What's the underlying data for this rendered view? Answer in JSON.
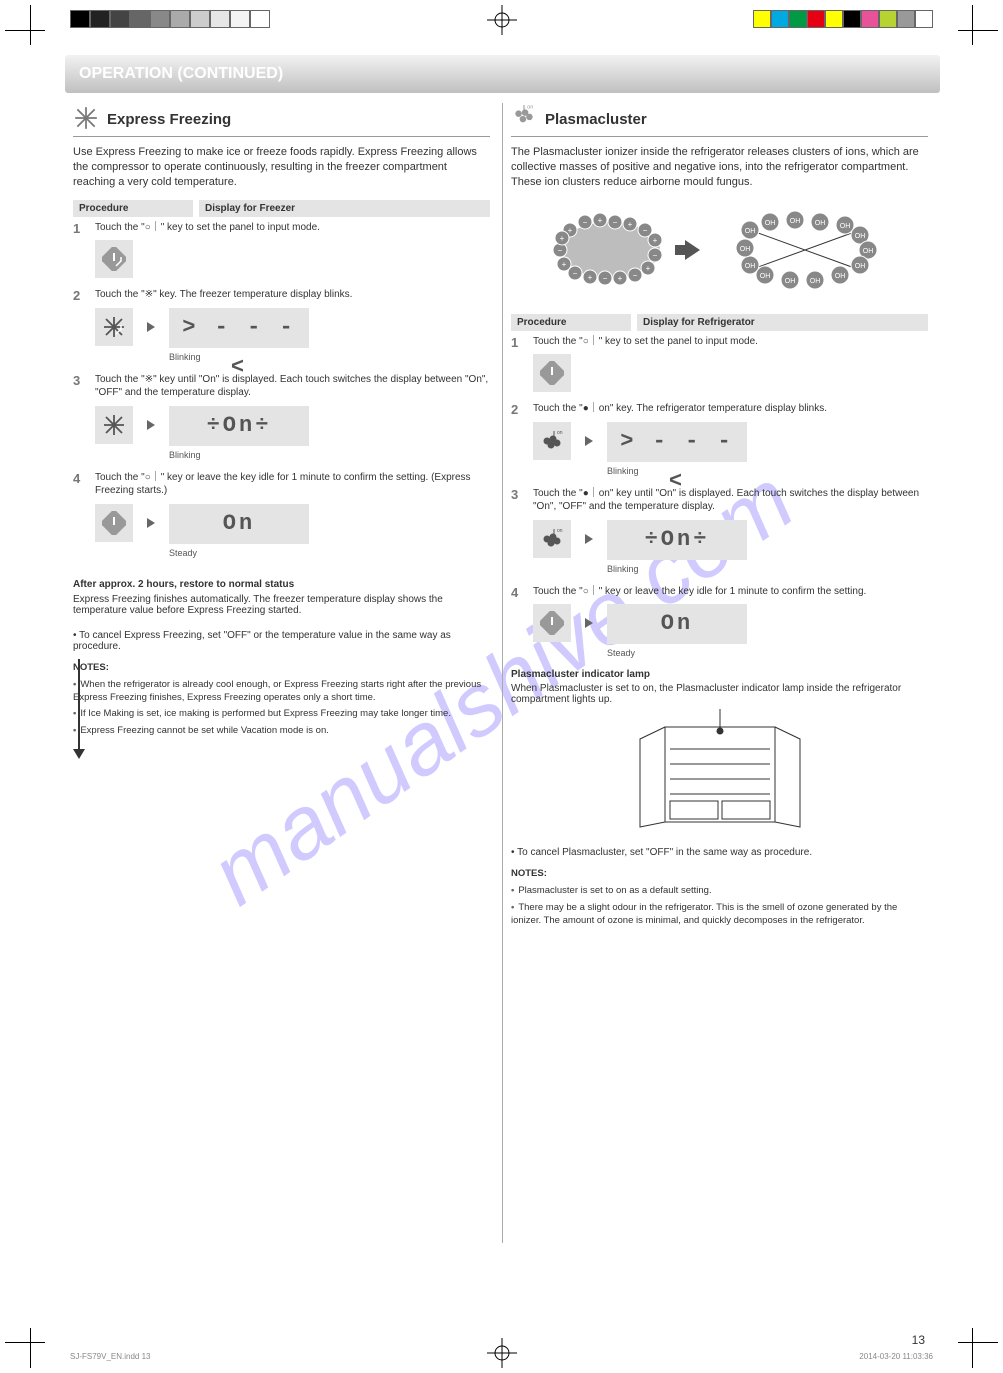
{
  "print_marks": {
    "gray_swatches": [
      "#000000",
      "#222222",
      "#444444",
      "#666666",
      "#888888",
      "#aaaaaa",
      "#cccccc",
      "#e6e6e6",
      "#f4f4f4",
      "#ffffff"
    ],
    "color_swatches": [
      "#ffff00",
      "#00a9e0",
      "#009944",
      "#e50012",
      "#ffff00",
      "#000000",
      "#e85298",
      "#b7d332",
      "#999999",
      "#ffffff"
    ]
  },
  "page_header": "OPERATION (CONTINUED)",
  "page_number": "13",
  "footer_left": "SJ-FS79V_EN.indd   13",
  "footer_right": "2014-03-20   11:03:36",
  "watermark": "manualshive.com",
  "left": {
    "title": "Express Freezing",
    "intro": "Use Express Freezing to make ice or freeze foods rapidly. Express Freezing allows the compressor to operate continuously, resulting in the freezer compartment reaching a very cold temperature.",
    "col_procedure": "Procedure",
    "col_display": "Display for Freezer",
    "steps": {
      "1": {
        "instr": "Touch the \"○｜\" key to set the panel to input mode.",
        "icon": "power-icon"
      },
      "2": {
        "instr": "Touch the \"※\" key. The freezer temperature display blinks.",
        "lcd": "> - - - <",
        "lcd_note": "Blinking",
        "icon": "snowflake-icon"
      },
      "3": {
        "instr": "Touch the \"※\" key until \"On\" is displayed. Each touch switches the display between \"On\", \"OFF\" and the temperature display.",
        "lcd": "÷On÷",
        "lcd_note": "Blinking",
        "icon": "snowflake-icon"
      },
      "4": {
        "instr": "Touch the \"○｜\" key or leave the key idle for 1 minute to confirm the setting. (Express Freezing starts.)",
        "lcd": "On",
        "lcd_note": "Steady",
        "icon": "power-icon"
      }
    },
    "after_heading": "After approx. 2 hours, restore to normal status",
    "after_text": "Express Freezing finishes automatically. The freezer temperature display shows the temperature value before Express Freezing started.",
    "cancel": "• To cancel Express Freezing, set \"OFF\" or the temperature value in the same way as procedure.",
    "notes_title": "NOTES:",
    "notes": [
      "When the refrigerator is already cool enough, or Express Freezing starts right after the previous Express Freezing finishes, Express Freezing operates only a short time.",
      "If Ice Making is set, ice making is performed but Express Freezing may take longer time.",
      "Express Freezing cannot be set while Vacation mode is on."
    ]
  },
  "right": {
    "title": "Plasmacluster",
    "intro": "The Plasmacluster ionizer inside the refrigerator releases clusters of ions, which are collective masses of positive and negative ions, into the refrigerator compartment. These ion clusters reduce airborne mould fungus.",
    "ion_labels": {
      "plus": "+",
      "minus": "−",
      "oh": "OH"
    },
    "col_procedure": "Procedure",
    "col_display": "Display for Refrigerator",
    "steps": {
      "1": {
        "instr": "Touch the \"○｜\" key to set the panel to input mode.",
        "icon": "power-icon"
      },
      "2": {
        "instr": "Touch the \"●｜on\" key. The refrigerator temperature display blinks.",
        "lcd": "> - - - <",
        "lcd_note": "Blinking",
        "icon": "pci-icon"
      },
      "3": {
        "instr": "Touch the \"●｜on\" key until \"On\" is displayed. Each touch switches the display between \"On\", \"OFF\" and the temperature display.",
        "lcd": "÷On÷",
        "lcd_note": "Blinking",
        "icon": "pci-icon"
      },
      "4": {
        "instr": "Touch the \"○｜\" key or leave the key idle for 1 minute to confirm the setting.",
        "lcd": "On",
        "lcd_note": "Steady",
        "icon": "power-icon"
      }
    },
    "lamp_label": "Plasmacluster indicator lamp",
    "lamp_text": "When Plasmacluster is set to on, the Plasmacluster indicator lamp inside the refrigerator compartment lights up.",
    "cancel": "• To cancel Plasmacluster, set \"OFF\" in the same way as procedure.",
    "notes_title": "NOTES:",
    "notes": [
      "Plasmacluster is set to on as a default setting.",
      "There may be a slight odour in the refrigerator. This is the smell of ozone generated by the ionizer. The amount of ozone is minimal, and quickly decomposes in the refrigerator."
    ]
  }
}
